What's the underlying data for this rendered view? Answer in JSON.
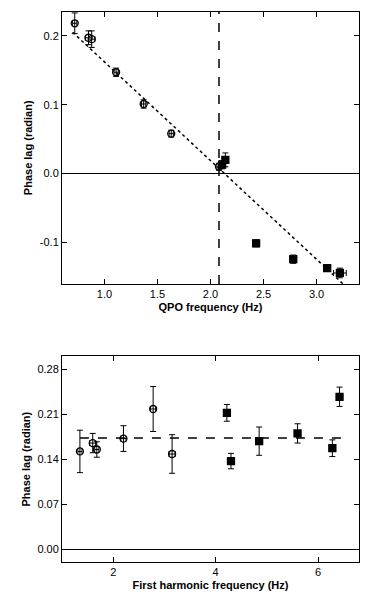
{
  "chart_data": [
    {
      "type": "scatter",
      "x_label": "QPO frequency (Hz)",
      "y_label": "Phase lag (radian)",
      "xlim": [
        0.6,
        3.4
      ],
      "ylim": [
        -0.16,
        0.235
      ],
      "xticks": [
        {
          "value": 1,
          "label": "1.0"
        },
        1.5,
        {
          "value": 2,
          "label": "2.0"
        },
        2.5,
        {
          "value": 3,
          "label": "3.0"
        }
      ],
      "yticks": [
        -0.1,
        {
          "value": 0,
          "label": "0.0"
        },
        0.1,
        0.2
      ],
      "series": [
        {
          "marker": "open circle",
          "color": "#000000",
          "x": [
            0.72,
            0.85,
            0.88,
            1.11,
            1.37,
            1.63,
            2.08
          ],
          "values": [
            0.218,
            0.197,
            0.195,
            0.147,
            0.101,
            0.058,
            0.01
          ],
          "errors": [
            0.015,
            0.01,
            0.012,
            0.006,
            0.006,
            0.005,
            0.005
          ],
          "x_errors": [
            0.02,
            0.03,
            0.03,
            0.02,
            0.02,
            0.02,
            0.02
          ]
        },
        {
          "marker": "filled square",
          "color": "#000000",
          "x": [
            2.11,
            2.14,
            2.43,
            2.78,
            3.1,
            3.22
          ],
          "values": [
            0.013,
            0.02,
            -0.101,
            -0.124,
            -0.137,
            -0.144
          ],
          "errors": [
            0.006,
            0.01,
            0.005,
            0.006,
            0.004,
            0.007
          ],
          "x_errors": [
            0.02,
            0.02,
            0.02,
            0.03,
            0.03,
            0.06
          ]
        },
        {
          "type": "line",
          "line_style": "dotted",
          "color": "#000000",
          "x": [
            0.7,
            3.25
          ],
          "values": [
            0.205,
            -0.16
          ]
        },
        {
          "type": "line",
          "line_style": "dashed",
          "color": "#000000",
          "x": [
            2.08,
            2.08
          ],
          "values": [
            -0.16,
            0.235
          ]
        }
      ]
    },
    {
      "type": "scatter",
      "x_label": "First harmonic frequency (Hz)",
      "y_label": "Phase lag (radian)",
      "xlim": [
        1.0,
        6.8
      ],
      "ylim": [
        -0.02,
        0.3
      ],
      "xticks": [
        2,
        4,
        6
      ],
      "yticks": [
        {
          "value": 0,
          "label": "0.00"
        },
        0.07,
        0.14,
        0.21,
        0.28
      ],
      "series": [
        {
          "marker": "open circle",
          "color": "#000000",
          "x": [
            1.35,
            1.6,
            1.68,
            2.2,
            2.78,
            3.15
          ],
          "values": [
            0.152,
            0.165,
            0.155,
            0.172,
            0.218,
            0.148
          ],
          "errors": [
            0.033,
            0.015,
            0.012,
            0.02,
            0.035,
            0.03
          ],
          "x_errors": [
            0.04,
            0.06,
            0.04,
            0.05,
            0.05,
            0.06
          ]
        },
        {
          "marker": "filled square",
          "color": "#000000",
          "x": [
            4.22,
            4.3,
            4.85,
            5.6,
            6.28,
            6.42
          ],
          "values": [
            0.212,
            0.137,
            0.168,
            0.18,
            0.157,
            0.237
          ],
          "errors": [
            0.013,
            0.012,
            0.022,
            0.015,
            0.013,
            0.015
          ],
          "x_errors": [
            0.05,
            0.05,
            0.06,
            0.06,
            0.06,
            0.06
          ]
        },
        {
          "type": "line",
          "line_style": "dashed",
          "color": "#000000",
          "x": [
            1.35,
            6.45
          ],
          "values": [
            0.173,
            0.173
          ]
        }
      ]
    }
  ]
}
